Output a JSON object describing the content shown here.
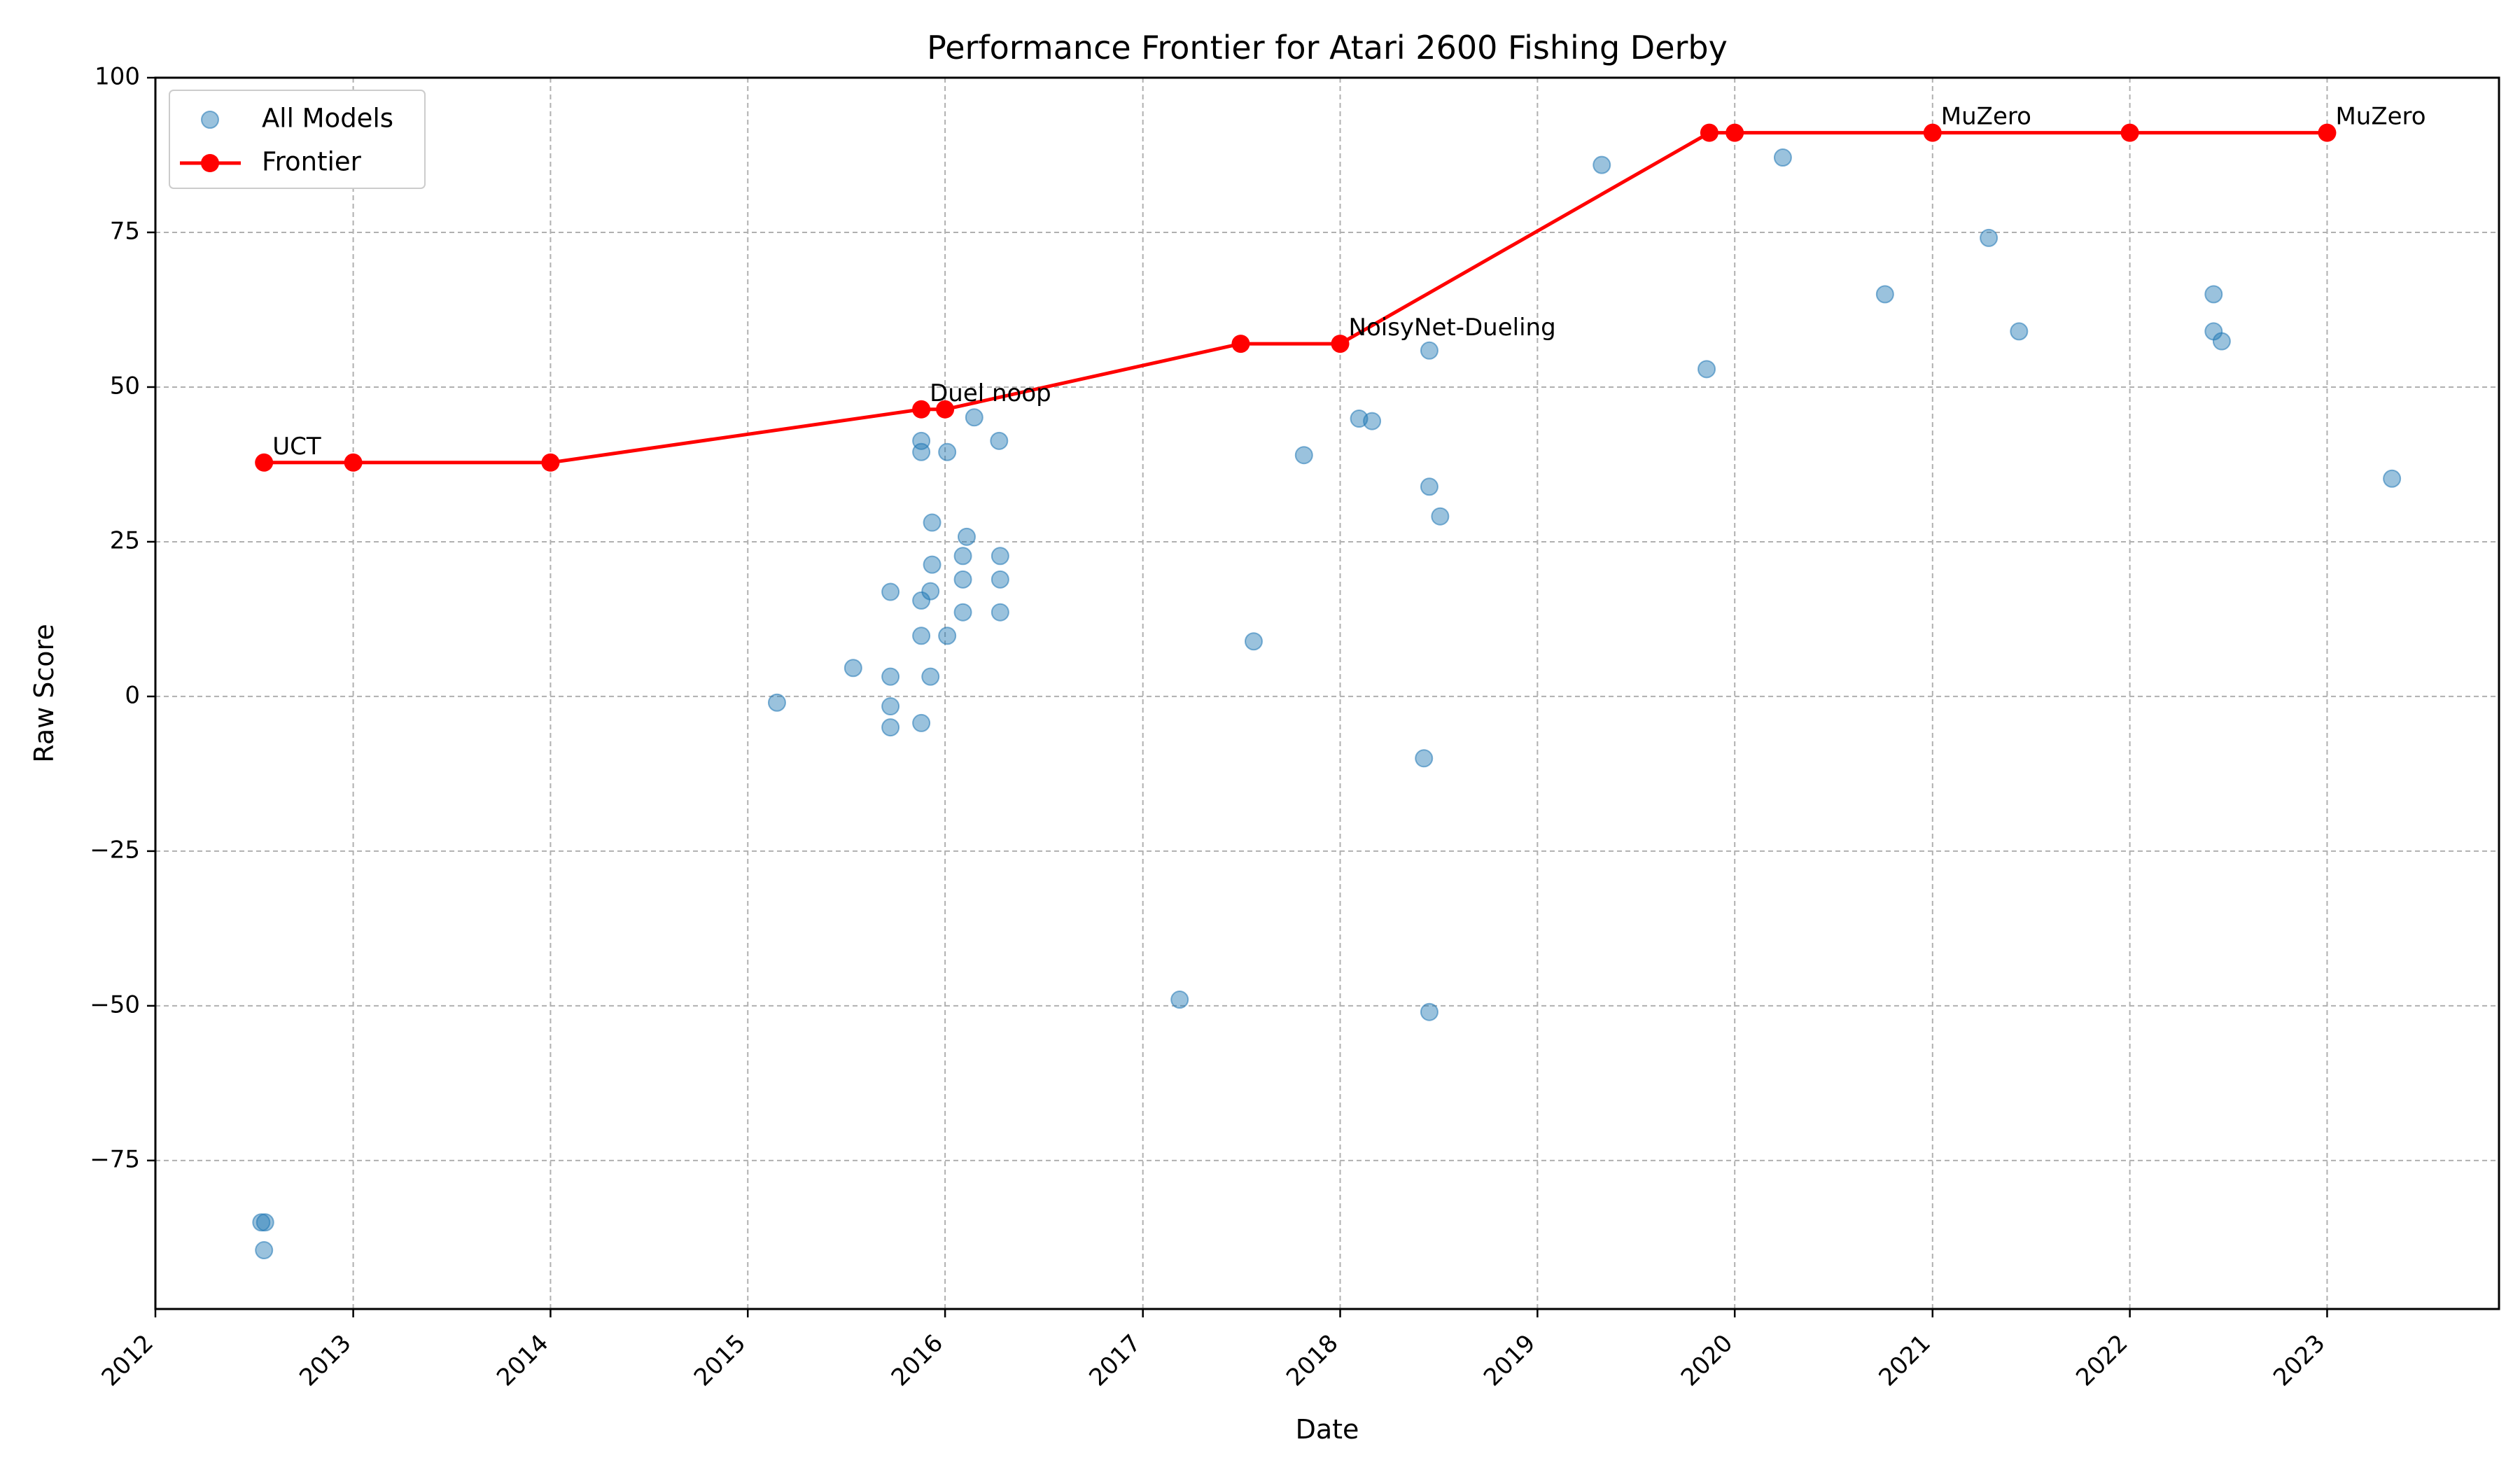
{
  "chart_data": {
    "type": "scatter",
    "title": "Performance Frontier for Atari 2600 Fishing Derby",
    "xlabel": "Date",
    "ylabel": "Raw Score",
    "x_type": "date",
    "xlim": [
      "2012-01-01",
      "2023-11-15"
    ],
    "ylim": [
      -99,
      100
    ],
    "xticks": [
      "2012",
      "2013",
      "2014",
      "2015",
      "2016",
      "2017",
      "2018",
      "2019",
      "2020",
      "2021",
      "2022",
      "2023"
    ],
    "yticks": [
      100,
      75,
      50,
      25,
      0,
      -25,
      -50,
      -75
    ],
    "ytick_labels": [
      "100",
      "75",
      "50",
      "25",
      "0",
      "−25",
      "−50",
      "−75"
    ],
    "grid": true,
    "legend": {
      "position": "top-left",
      "entries": [
        {
          "label": "All Models",
          "marker": "circle"
        },
        {
          "label": "Frontier",
          "marker": "line-circle"
        }
      ]
    },
    "colors": {
      "all_models": "#1f77b4",
      "frontier": "#ff0000"
    },
    "series": [
      {
        "name": "All Models",
        "style": "scatter",
        "points": [
          [
            "2012-07-15",
            -85
          ],
          [
            "2012-07-22",
            -85
          ],
          [
            "2012-07-20",
            -89.5
          ],
          [
            "2015-02-24",
            -1
          ],
          [
            "2015-07-15",
            4.6
          ],
          [
            "2015-09-22",
            3.2
          ],
          [
            "2015-09-22",
            -1.6
          ],
          [
            "2015-09-22",
            -5
          ],
          [
            "2015-09-22",
            16.9
          ],
          [
            "2015-11-18",
            41.3
          ],
          [
            "2015-11-18",
            39.5
          ],
          [
            "2015-11-18",
            15.5
          ],
          [
            "2015-11-18",
            9.8
          ],
          [
            "2015-11-18",
            -4.3
          ],
          [
            "2015-12-05",
            3.2
          ],
          [
            "2015-12-05",
            17
          ],
          [
            "2015-12-08",
            21.3
          ],
          [
            "2015-12-08",
            28.1
          ],
          [
            "2016-01-05",
            39.5
          ],
          [
            "2016-01-05",
            9.8
          ],
          [
            "2016-02-03",
            22.7
          ],
          [
            "2016-02-03",
            18.9
          ],
          [
            "2016-02-03",
            13.6
          ],
          [
            "2016-02-10",
            25.8
          ],
          [
            "2016-02-24",
            45.1
          ],
          [
            "2016-04-10",
            41.3
          ],
          [
            "2016-04-12",
            22.7
          ],
          [
            "2016-04-12",
            18.9
          ],
          [
            "2016-04-12",
            13.6
          ],
          [
            "2017-03-10",
            -49
          ],
          [
            "2017-07-25",
            8.9
          ],
          [
            "2017-10-26",
            39
          ],
          [
            "2018-02-05",
            44.9
          ],
          [
            "2018-03-01",
            44.5
          ],
          [
            "2018-06-05",
            -10
          ],
          [
            "2018-06-15",
            55.9
          ],
          [
            "2018-06-15",
            33.9
          ],
          [
            "2018-06-15",
            -51
          ],
          [
            "2018-07-05",
            29.1
          ],
          [
            "2019-04-30",
            85.9
          ],
          [
            "2019-11-10",
            52.9
          ],
          [
            "2020-03-30",
            87.1
          ],
          [
            "2020-10-05",
            65
          ],
          [
            "2021-04-15",
            74.1
          ],
          [
            "2021-06-10",
            59
          ],
          [
            "2022-06-05",
            65
          ],
          [
            "2022-06-05",
            59
          ],
          [
            "2022-06-20",
            57.4
          ],
          [
            "2023-05-01",
            35.2
          ]
        ]
      },
      {
        "name": "Frontier",
        "style": "line",
        "points": [
          [
            "2012-07-20",
            37.8
          ],
          [
            "2013-01-01",
            37.8
          ],
          [
            "2014-01-01",
            37.8
          ],
          [
            "2015-11-18",
            46.4
          ],
          [
            "2016-01-01",
            46.4
          ],
          [
            "2017-07-01",
            57
          ],
          [
            "2018-01-01",
            57
          ],
          [
            "2019-11-15",
            91.1
          ],
          [
            "2020-01-01",
            91.1
          ],
          [
            "2021-01-01",
            91.1
          ],
          [
            "2022-01-01",
            91.1
          ],
          [
            "2023-01-01",
            91.1
          ]
        ]
      }
    ],
    "annotations": [
      {
        "text": "UCT",
        "x": "2012-07-20",
        "y": 37.8
      },
      {
        "text": "Duel noop",
        "x": "2015-11-18",
        "y": 46.4
      },
      {
        "text": "NoisyNet-Dueling",
        "x": "2018-01-01",
        "y": 57
      },
      {
        "text": "MuZero",
        "x": "2021-01-01",
        "y": 91.1
      },
      {
        "text": "MuZero",
        "x": "2023-01-01",
        "y": 91.1
      }
    ]
  }
}
